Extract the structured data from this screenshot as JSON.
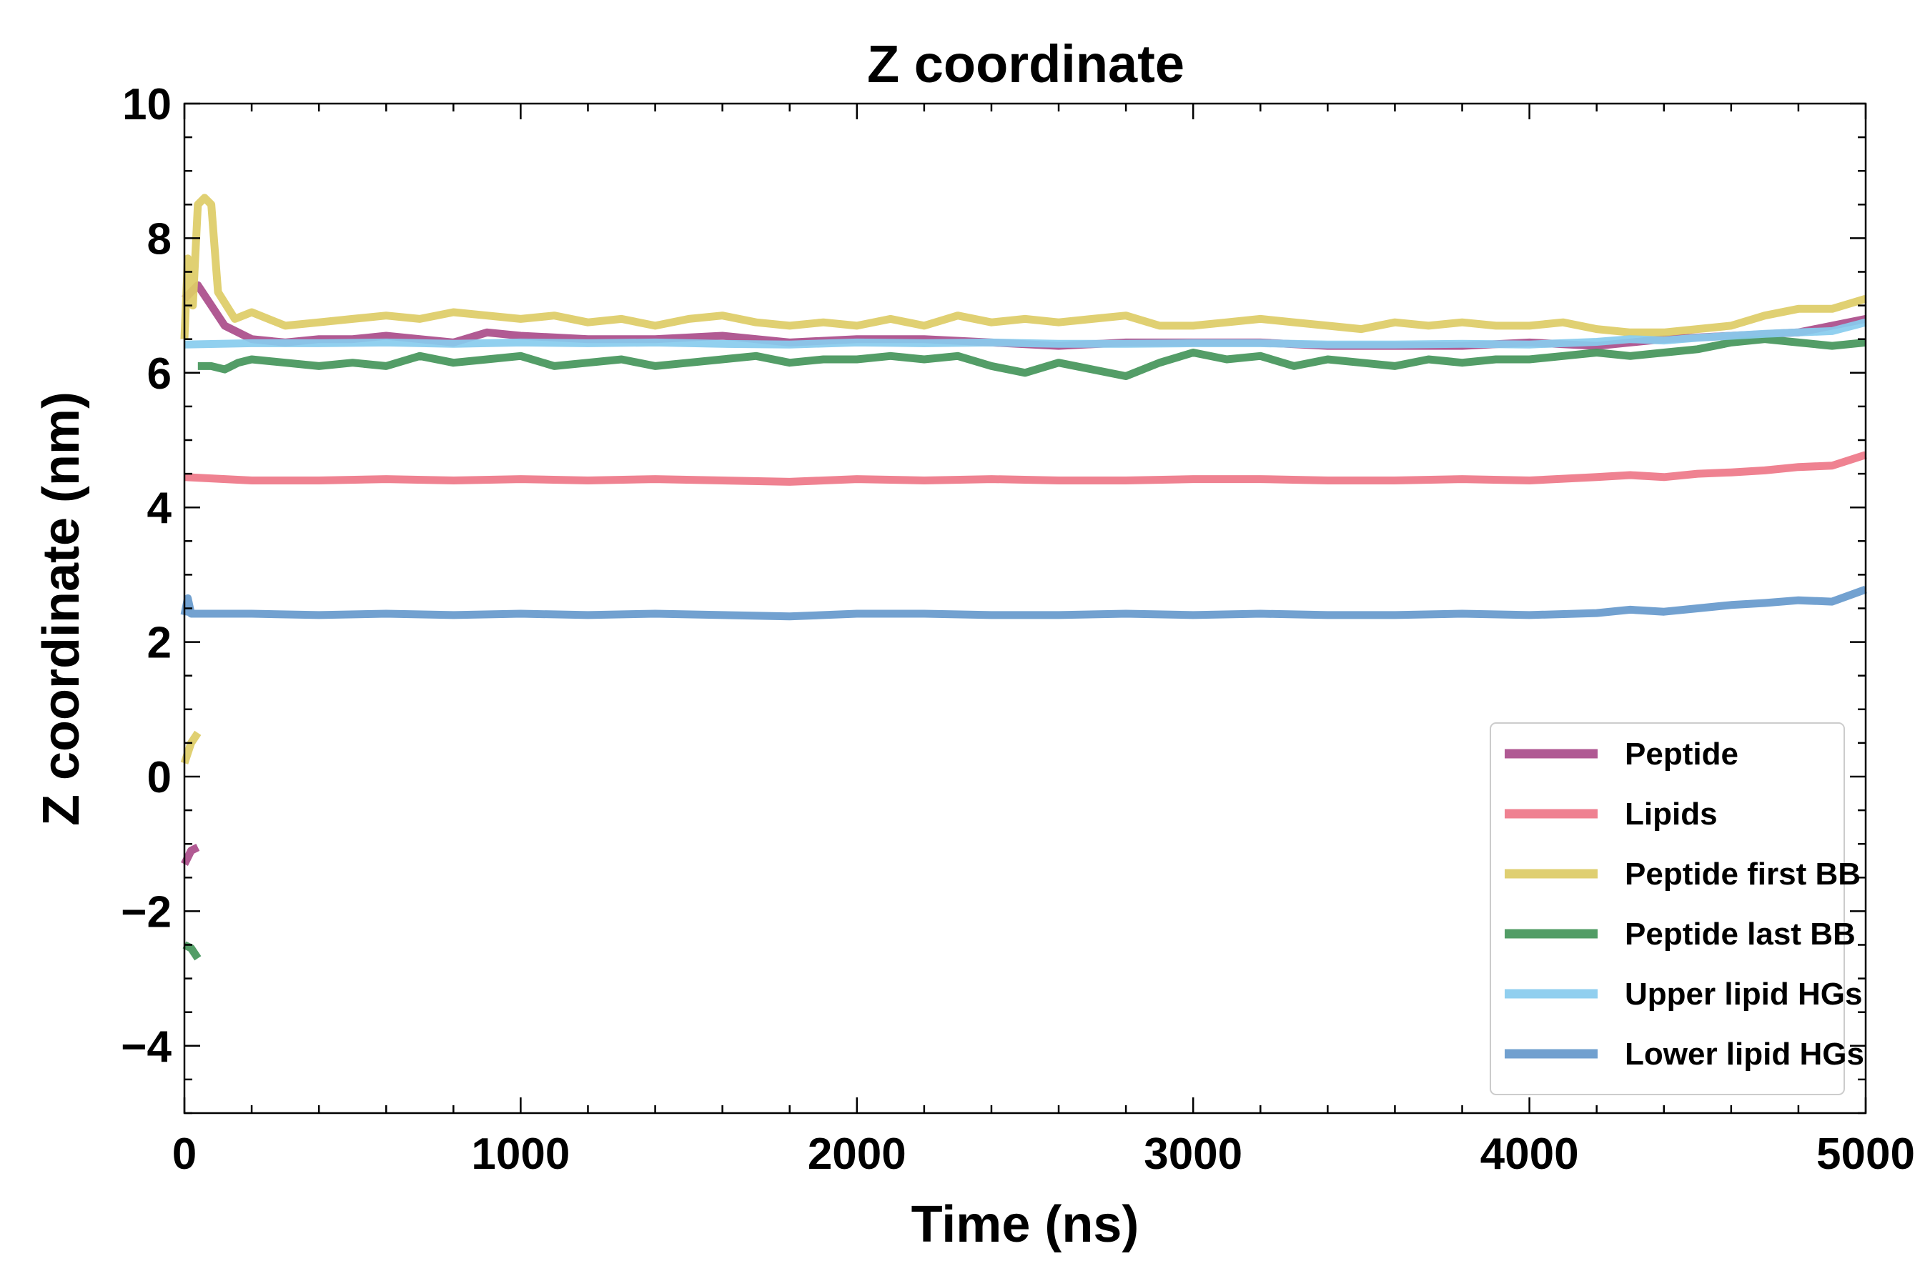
{
  "chart_data": {
    "type": "line",
    "title": "Z coordinate",
    "xlabel": "Time (ns)",
    "ylabel": "Z coordinate (nm)",
    "xlim": [
      0,
      5000
    ],
    "ylim": [
      -5,
      10
    ],
    "xticks": [
      0,
      1000,
      2000,
      3000,
      4000,
      5000
    ],
    "xtick_labels": [
      "0",
      "1000",
      "2000",
      "3000",
      "4000",
      "5000"
    ],
    "yticks": [
      -4,
      -2,
      0,
      2,
      4,
      6,
      8,
      10
    ],
    "ytick_labels": [
      "−4",
      "−2",
      "0",
      "2",
      "4",
      "6",
      "8",
      "10"
    ],
    "grid": false,
    "legend_position": "lower-right",
    "series": [
      {
        "name": "Peptide",
        "color": "#aa4c8a",
        "segments": [
          {
            "x": [
              0,
              20,
              40
            ],
            "y": [
              -1.3,
              -1.1,
              -1.05
            ]
          },
          {
            "x": [
              0,
              40,
              80,
              120,
              160,
              200,
              300,
              400,
              500,
              600,
              700,
              800,
              900,
              1000,
              1200,
              1400,
              1600,
              1800,
              2000,
              2200,
              2400,
              2600,
              2800,
              3000,
              3200,
              3400,
              3600,
              3800,
              4000,
              4200,
              4400,
              4600,
              4800,
              5000
            ],
            "y": [
              7.1,
              7.3,
              7.0,
              6.7,
              6.6,
              6.5,
              6.45,
              6.5,
              6.5,
              6.55,
              6.5,
              6.45,
              6.6,
              6.55,
              6.5,
              6.5,
              6.55,
              6.45,
              6.5,
              6.5,
              6.45,
              6.4,
              6.45,
              6.45,
              6.45,
              6.4,
              6.4,
              6.4,
              6.45,
              6.4,
              6.5,
              6.55,
              6.6,
              6.8
            ]
          }
        ]
      },
      {
        "name": "Lipids",
        "color": "#ee7788",
        "segments": [
          {
            "x": [
              0,
              200,
              400,
              600,
              800,
              1000,
              1200,
              1400,
              1600,
              1800,
              2000,
              2200,
              2400,
              2600,
              2800,
              3000,
              3200,
              3400,
              3600,
              3800,
              4000,
              4200,
              4300,
              4400,
              4500,
              4600,
              4700,
              4800,
              4900,
              5000
            ],
            "y": [
              4.45,
              4.4,
              4.4,
              4.42,
              4.4,
              4.42,
              4.4,
              4.42,
              4.4,
              4.38,
              4.42,
              4.4,
              4.42,
              4.4,
              4.4,
              4.42,
              4.42,
              4.4,
              4.4,
              4.42,
              4.4,
              4.45,
              4.48,
              4.45,
              4.5,
              4.52,
              4.55,
              4.6,
              4.62,
              4.78
            ]
          }
        ]
      },
      {
        "name": "Peptide first BB",
        "color": "#ddcc66",
        "segments": [
          {
            "x": [
              0,
              20,
              40
            ],
            "y": [
              0.2,
              0.5,
              0.65
            ]
          },
          {
            "x": [
              0,
              10,
              25,
              40,
              60,
              80,
              100,
              150,
              200,
              300,
              400,
              500,
              600,
              700,
              800,
              900,
              1000,
              1100,
              1200,
              1300,
              1400,
              1500,
              1600,
              1700,
              1800,
              1900,
              2000,
              2100,
              2200,
              2300,
              2400,
              2500,
              2600,
              2700,
              2800,
              2900,
              3000,
              3100,
              3200,
              3300,
              3400,
              3500,
              3600,
              3700,
              3800,
              3900,
              4000,
              4100,
              4200,
              4300,
              4400,
              4500,
              4600,
              4700,
              4800,
              4900,
              5000
            ],
            "y": [
              6.5,
              7.7,
              7.0,
              8.5,
              8.6,
              8.5,
              7.2,
              6.8,
              6.9,
              6.7,
              6.75,
              6.8,
              6.85,
              6.8,
              6.9,
              6.85,
              6.8,
              6.85,
              6.75,
              6.8,
              6.7,
              6.8,
              6.85,
              6.75,
              6.7,
              6.75,
              6.7,
              6.8,
              6.7,
              6.85,
              6.75,
              6.8,
              6.75,
              6.8,
              6.85,
              6.7,
              6.7,
              6.75,
              6.8,
              6.75,
              6.7,
              6.65,
              6.75,
              6.7,
              6.75,
              6.7,
              6.7,
              6.75,
              6.65,
              6.6,
              6.6,
              6.65,
              6.7,
              6.85,
              6.95,
              6.95,
              7.1
            ]
          }
        ]
      },
      {
        "name": "Peptide last BB",
        "color": "#44955a",
        "segments": [
          {
            "x": [
              0,
              20,
              40
            ],
            "y": [
              -2.5,
              -2.55,
              -2.7
            ]
          },
          {
            "x": [
              40,
              80,
              120,
              160,
              200,
              300,
              400,
              500,
              600,
              700,
              800,
              900,
              1000,
              1100,
              1200,
              1300,
              1400,
              1500,
              1600,
              1700,
              1800,
              1900,
              2000,
              2100,
              2200,
              2300,
              2400,
              2500,
              2600,
              2700,
              2800,
              2900,
              3000,
              3100,
              3200,
              3300,
              3400,
              3500,
              3600,
              3700,
              3800,
              3900,
              4000,
              4100,
              4200,
              4300,
              4400,
              4500,
              4600,
              4700,
              4800,
              4900,
              5000
            ],
            "y": [
              6.1,
              6.1,
              6.05,
              6.15,
              6.2,
              6.15,
              6.1,
              6.15,
              6.1,
              6.25,
              6.15,
              6.2,
              6.25,
              6.1,
              6.15,
              6.2,
              6.1,
              6.15,
              6.2,
              6.25,
              6.15,
              6.2,
              6.2,
              6.25,
              6.2,
              6.25,
              6.1,
              6.0,
              6.15,
              6.05,
              5.95,
              6.15,
              6.3,
              6.2,
              6.25,
              6.1,
              6.2,
              6.15,
              6.1,
              6.2,
              6.15,
              6.2,
              6.2,
              6.25,
              6.3,
              6.25,
              6.3,
              6.35,
              6.45,
              6.5,
              6.45,
              6.4,
              6.45
            ]
          }
        ]
      },
      {
        "name": "Upper lipid HGs",
        "color": "#88ccee",
        "segments": [
          {
            "x": [
              0,
              200,
              400,
              600,
              800,
              1000,
              1200,
              1400,
              1600,
              1800,
              2000,
              2200,
              2400,
              2600,
              2800,
              3000,
              3200,
              3400,
              3600,
              3800,
              4000,
              4200,
              4300,
              4400,
              4500,
              4600,
              4700,
              4800,
              4900,
              5000
            ],
            "y": [
              6.42,
              6.44,
              6.44,
              6.45,
              6.43,
              6.45,
              6.44,
              6.45,
              6.43,
              6.42,
              6.45,
              6.44,
              6.45,
              6.43,
              6.43,
              6.44,
              6.44,
              6.42,
              6.42,
              6.43,
              6.42,
              6.46,
              6.5,
              6.48,
              6.52,
              6.55,
              6.58,
              6.6,
              6.62,
              6.75
            ]
          }
        ]
      },
      {
        "name": "Lower lipid HGs",
        "color": "#6699cc",
        "segments": [
          {
            "x": [
              0,
              10,
              20,
              200,
              400,
              600,
              800,
              1000,
              1200,
              1400,
              1600,
              1800,
              2000,
              2200,
              2400,
              2600,
              2800,
              3000,
              3200,
              3400,
              3600,
              3800,
              4000,
              4200,
              4300,
              4400,
              4500,
              4600,
              4700,
              4800,
              4900,
              5000
            ],
            "y": [
              2.4,
              2.65,
              2.42,
              2.42,
              2.4,
              2.42,
              2.4,
              2.42,
              2.4,
              2.42,
              2.4,
              2.38,
              2.42,
              2.42,
              2.4,
              2.4,
              2.42,
              2.4,
              2.42,
              2.4,
              2.4,
              2.42,
              2.4,
              2.43,
              2.48,
              2.45,
              2.5,
              2.55,
              2.58,
              2.62,
              2.6,
              2.78
            ]
          }
        ]
      }
    ]
  }
}
